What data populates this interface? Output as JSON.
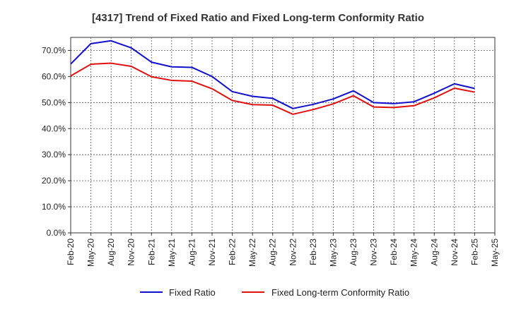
{
  "chart_data": {
    "type": "line",
    "title": "[4317]  Trend of Fixed Ratio and Fixed Long-term Conformity Ratio",
    "xlabel": "",
    "ylabel": "",
    "categories": [
      "Feb-20",
      "May-20",
      "Aug-20",
      "Nov-20",
      "Feb-21",
      "May-21",
      "Aug-21",
      "Nov-21",
      "Feb-22",
      "May-22",
      "Aug-22",
      "Nov-22",
      "Feb-23",
      "May-23",
      "Aug-23",
      "Nov-23",
      "Feb-24",
      "May-24",
      "Aug-24",
      "Nov-24",
      "Feb-25",
      "May-25"
    ],
    "ylim": [
      0,
      75
    ],
    "yticks": [
      0,
      10,
      20,
      30,
      40,
      50,
      60,
      70
    ],
    "ytick_labels": [
      "0.0%",
      "10.0%",
      "20.0%",
      "30.0%",
      "40.0%",
      "50.0%",
      "60.0%",
      "70.0%"
    ],
    "grid": true,
    "legend_position": "bottom",
    "series": [
      {
        "name": "Fixed Ratio",
        "color": "#1010cc",
        "values": [
          64.8,
          72.6,
          73.7,
          71.0,
          65.5,
          63.7,
          63.5,
          60.0,
          54.2,
          52.4,
          51.6,
          47.7,
          49.3,
          51.4,
          54.5,
          50.0,
          49.6,
          50.3,
          53.6,
          57.2,
          55.4,
          null
        ]
      },
      {
        "name": "Fixed Long-term Conformity Ratio",
        "color": "#e01010",
        "values": [
          60.2,
          64.7,
          65.1,
          63.9,
          59.9,
          58.5,
          58.2,
          55.3,
          50.8,
          49.2,
          49.0,
          45.5,
          47.3,
          49.5,
          52.6,
          48.3,
          48.1,
          48.8,
          51.8,
          55.5,
          54.0,
          null
        ]
      }
    ]
  }
}
